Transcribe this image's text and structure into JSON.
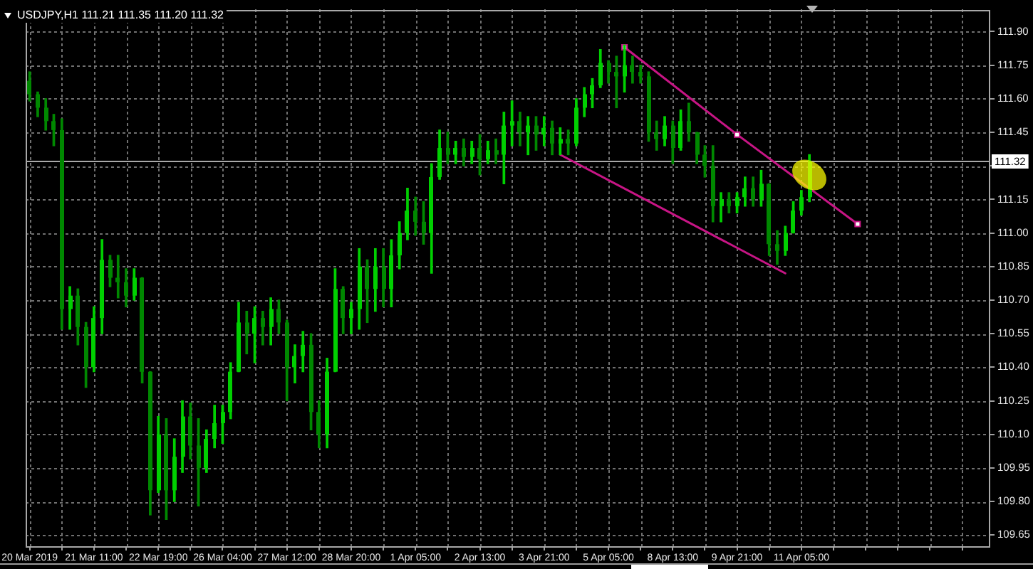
{
  "chart_data": {
    "type": "candlestick",
    "title": "USDJPY,H1 111.21 111.35 111.20 111.32",
    "categories": [
      "20 Mar 2019",
      null,
      null,
      null,
      null,
      null,
      null,
      null,
      "21 Mar 11:00",
      null,
      null,
      null,
      null,
      null,
      null,
      null,
      "22 Mar 19:00",
      null,
      null,
      null,
      null,
      null,
      null,
      null,
      "26 Mar 04:00",
      null,
      null,
      null,
      null,
      null,
      null,
      null,
      "27 Mar 12:00",
      null,
      null,
      null,
      null,
      null,
      null,
      null,
      "28 Mar 20:00",
      null,
      null,
      null,
      null,
      null,
      null,
      null,
      "1 Apr 05:00",
      null,
      null,
      null,
      null,
      null,
      null,
      null,
      "2 Apr 13:00",
      null,
      null,
      null,
      null,
      null,
      null,
      null,
      "3 Apr 21:00",
      null,
      null,
      null,
      null,
      null,
      null,
      null,
      "5 Apr 05:00",
      null,
      null,
      null,
      null,
      null,
      null,
      null,
      "8 Apr 13:00",
      null,
      null,
      null,
      null,
      null,
      null,
      null,
      "9 Apr 21:00",
      null,
      null,
      null,
      null,
      null,
      null,
      null,
      "11 Apr 05:00",
      null,
      null,
      null,
      null,
      null,
      null,
      null,
      null,
      null,
      null,
      null,
      null,
      null,
      null,
      null,
      null,
      null,
      null,
      null,
      null,
      null,
      null,
      null
    ],
    "ohlc": [
      [
        111.68,
        111.72,
        111.59,
        111.62
      ],
      [
        111.62,
        111.63,
        111.52,
        111.56
      ],
      [
        111.56,
        111.6,
        111.46,
        111.5
      ],
      [
        111.5,
        111.53,
        111.39,
        111.46
      ],
      [
        111.46,
        111.51,
        110.57,
        110.66
      ],
      [
        110.66,
        110.76,
        110.57,
        110.72
      ],
      [
        110.72,
        110.75,
        110.5,
        110.58
      ],
      [
        110.58,
        110.6,
        110.31,
        110.4
      ],
      [
        110.4,
        110.67,
        110.38,
        110.62
      ],
      [
        110.62,
        110.97,
        110.55,
        110.88
      ],
      [
        110.88,
        110.9,
        110.76,
        110.8
      ],
      [
        110.8,
        110.9,
        110.71,
        110.78
      ],
      [
        110.78,
        110.84,
        110.67,
        110.72
      ],
      [
        110.72,
        110.84,
        110.7,
        110.8
      ],
      [
        110.8,
        110.8,
        110.33,
        110.38
      ],
      [
        110.38,
        110.38,
        109.74,
        109.85
      ],
      [
        109.85,
        110.18,
        109.84,
        110.1
      ],
      [
        110.1,
        110.17,
        109.72,
        109.85
      ],
      [
        109.85,
        110.08,
        109.8,
        110.0
      ],
      [
        110.0,
        110.25,
        109.93,
        110.18
      ],
      [
        110.18,
        110.24,
        109.99,
        110.05
      ],
      [
        110.05,
        110.17,
        109.78,
        109.95
      ],
      [
        109.95,
        110.12,
        109.93,
        110.08
      ],
      [
        110.08,
        110.23,
        110.04,
        110.15
      ],
      [
        110.15,
        110.23,
        110.06,
        110.2
      ],
      [
        110.2,
        110.42,
        110.17,
        110.38
      ],
      [
        110.38,
        110.69,
        110.38,
        110.6
      ],
      [
        110.6,
        110.65,
        110.46,
        110.55
      ],
      [
        110.55,
        110.67,
        110.42,
        110.62
      ],
      [
        110.62,
        110.65,
        110.5,
        110.58
      ],
      [
        110.58,
        110.71,
        110.5,
        110.66
      ],
      [
        110.66,
        110.7,
        110.55,
        110.6
      ],
      [
        110.6,
        110.61,
        110.25,
        110.4
      ],
      [
        110.4,
        110.5,
        110.33,
        110.45
      ],
      [
        110.45,
        110.56,
        110.38,
        110.5
      ],
      [
        110.5,
        110.55,
        110.12,
        110.2
      ],
      [
        110.2,
        110.25,
        110.04,
        110.1
      ],
      [
        110.1,
        110.44,
        110.04,
        110.38
      ],
      [
        110.38,
        110.84,
        110.38,
        110.75
      ],
      [
        110.75,
        110.76,
        110.55,
        110.62
      ],
      [
        110.62,
        110.69,
        110.55,
        110.66
      ],
      [
        110.66,
        110.93,
        110.57,
        110.85
      ],
      [
        110.85,
        110.88,
        110.6,
        110.75
      ],
      [
        110.75,
        110.93,
        110.65,
        110.85
      ],
      [
        110.85,
        110.93,
        110.67,
        110.75
      ],
      [
        110.75,
        110.97,
        110.67,
        110.9
      ],
      [
        110.9,
        111.05,
        110.84,
        111.0
      ],
      [
        111.0,
        111.2,
        110.97,
        111.1
      ],
      [
        111.1,
        111.16,
        110.99,
        111.05
      ],
      [
        111.05,
        111.14,
        110.95,
        111.0
      ],
      [
        111.0,
        111.31,
        110.82,
        111.25
      ],
      [
        111.25,
        111.46,
        111.24,
        111.38
      ],
      [
        111.38,
        111.45,
        111.31,
        111.35
      ],
      [
        111.35,
        111.41,
        111.31,
        111.38
      ],
      [
        111.38,
        111.42,
        111.3,
        111.34
      ],
      [
        111.34,
        111.41,
        111.31,
        111.38
      ],
      [
        111.38,
        111.44,
        111.26,
        111.33
      ],
      [
        111.33,
        111.41,
        111.31,
        111.37
      ],
      [
        111.37,
        111.42,
        111.31,
        111.35
      ],
      [
        111.35,
        111.54,
        111.22,
        111.48
      ],
      [
        111.48,
        111.59,
        111.39,
        111.5
      ],
      [
        111.5,
        111.54,
        111.39,
        111.45
      ],
      [
        111.45,
        111.52,
        111.35,
        111.48
      ],
      [
        111.48,
        111.52,
        111.37,
        111.44
      ],
      [
        111.44,
        111.52,
        111.39,
        111.47
      ],
      [
        111.47,
        111.5,
        111.35,
        111.4
      ],
      [
        111.4,
        111.47,
        111.35,
        111.42
      ],
      [
        111.42,
        111.46,
        111.35,
        111.4
      ],
      [
        111.4,
        111.6,
        111.39,
        111.56
      ],
      [
        111.56,
        111.65,
        111.52,
        111.62
      ],
      [
        111.62,
        111.69,
        111.56,
        111.66
      ],
      [
        111.66,
        111.82,
        111.65,
        111.76
      ],
      [
        111.76,
        111.77,
        111.67,
        111.72
      ],
      [
        111.72,
        111.79,
        111.56,
        111.7
      ],
      [
        111.7,
        111.84,
        111.63,
        111.75
      ],
      [
        111.75,
        111.79,
        111.67,
        111.72
      ],
      [
        111.72,
        111.75,
        111.67,
        111.7
      ],
      [
        111.7,
        111.72,
        111.41,
        111.45
      ],
      [
        111.45,
        111.5,
        111.37,
        111.42
      ],
      [
        111.42,
        111.52,
        111.39,
        111.48
      ],
      [
        111.48,
        111.5,
        111.31,
        111.38
      ],
      [
        111.38,
        111.55,
        111.37,
        111.5
      ],
      [
        111.5,
        111.58,
        111.41,
        111.45
      ],
      [
        111.45,
        111.45,
        111.31,
        111.35
      ],
      [
        111.35,
        111.39,
        111.25,
        111.3
      ],
      [
        111.3,
        111.39,
        111.05,
        111.12
      ],
      [
        111.12,
        111.18,
        111.05,
        111.15
      ],
      [
        111.15,
        111.18,
        111.09,
        111.12
      ],
      [
        111.12,
        111.18,
        111.09,
        111.16
      ],
      [
        111.16,
        111.25,
        111.12,
        111.2
      ],
      [
        111.2,
        111.25,
        111.12,
        111.15
      ],
      [
        111.15,
        111.28,
        111.12,
        111.22
      ],
      [
        111.22,
        111.22,
        110.9,
        110.95
      ],
      [
        110.95,
        111.01,
        110.86,
        110.92
      ],
      [
        110.92,
        111.03,
        110.9,
        111.0
      ],
      [
        111.0,
        111.14,
        111.0,
        111.1
      ],
      [
        111.1,
        111.19,
        111.08,
        111.16
      ],
      [
        111.16,
        111.35,
        111.14,
        111.32
      ],
      null,
      null,
      null,
      null,
      null,
      null,
      null,
      null,
      null,
      null,
      null,
      null,
      null,
      null,
      null,
      null,
      null,
      null,
      null,
      null,
      null,
      null
    ],
    "colors": [
      "#008800",
      "#008800",
      "#008800",
      "#008800",
      "#008800",
      "#00d000",
      "#008800",
      "#008800",
      "#00d000",
      "#00d000",
      "#008800",
      "#008800",
      "#008800",
      "#00d000",
      "#008800",
      "#008800",
      "#00d000",
      "#008800",
      "#00d000",
      "#00d000",
      "#008800",
      "#008800",
      "#00d000",
      "#00d000",
      "#00d000",
      "#00d000",
      "#00d000",
      "#008800",
      "#00d000",
      "#008800",
      "#00d000",
      "#008800",
      "#008800",
      "#00d000",
      "#00d000",
      "#008800",
      "#008800",
      "#00d000",
      "#00d000",
      "#008800",
      "#00d000",
      "#00d000",
      "#008800",
      "#00d000",
      "#008800",
      "#00d000",
      "#00d000",
      "#00d000",
      "#008800",
      "#008800",
      "#00d000",
      "#00d000",
      "#008800",
      "#00d000",
      "#008800",
      "#00d000",
      "#008800",
      "#00d000",
      "#008800",
      "#00d000",
      "#00d000",
      "#008800",
      "#00d000",
      "#008800",
      "#00d000",
      "#008800",
      "#00d000",
      "#008800",
      "#00d000",
      "#00d000",
      "#00d000",
      "#00d000",
      "#008800",
      "#008800",
      "#00d000",
      "#008800",
      "#008800",
      "#008800",
      "#008800",
      "#00d000",
      "#008800",
      "#00d000",
      "#008800",
      "#008800",
      "#008800",
      "#008800",
      "#00d000",
      "#008800",
      "#00d000",
      "#00d000",
      "#008800",
      "#00d000",
      "#008800",
      "#008800",
      "#00d000",
      "#00d000",
      "#00d000",
      "#00d000",
      null,
      null,
      null,
      null,
      null,
      null,
      null,
      null,
      null,
      null,
      null,
      null,
      null,
      null,
      null,
      null,
      null,
      null,
      null,
      null,
      null,
      null
    ],
    "series": [
      {
        "type": "line",
        "color": "#c71585",
        "marker": "square",
        "values": [
          null,
          null,
          null,
          null,
          null,
          null,
          null,
          null,
          null,
          null,
          null,
          null,
          null,
          null,
          null,
          null,
          null,
          null,
          null,
          null,
          null,
          null,
          null,
          null,
          null,
          null,
          null,
          null,
          null,
          null,
          null,
          null,
          null,
          null,
          null,
          null,
          null,
          null,
          null,
          null,
          null,
          null,
          null,
          null,
          null,
          null,
          null,
          null,
          null,
          null,
          null,
          null,
          null,
          null,
          null,
          null,
          null,
          null,
          null,
          null,
          null,
          null,
          null,
          null,
          null,
          null,
          null,
          null,
          null,
          null,
          null,
          null,
          null,
          null,
          111.83,
          null,
          null,
          null,
          null,
          null,
          null,
          null,
          null,
          null,
          null,
          null,
          null,
          null,
          111.44,
          null,
          null,
          null,
          null,
          null,
          null,
          null,
          null,
          null,
          null,
          null,
          null,
          null,
          null,
          111.04,
          null,
          null,
          null,
          null,
          null,
          null,
          null,
          null,
          null,
          null,
          null,
          null,
          null,
          null,
          null,
          null
        ]
      },
      {
        "type": "line",
        "color": "#c71585",
        "values": [
          null,
          null,
          null,
          null,
          null,
          null,
          null,
          null,
          null,
          null,
          null,
          null,
          null,
          null,
          null,
          null,
          null,
          null,
          null,
          null,
          null,
          null,
          null,
          null,
          null,
          null,
          null,
          null,
          null,
          null,
          null,
          null,
          null,
          null,
          null,
          null,
          null,
          null,
          null,
          null,
          null,
          null,
          null,
          null,
          null,
          null,
          null,
          null,
          null,
          null,
          null,
          null,
          null,
          null,
          null,
          null,
          null,
          null,
          null,
          null,
          null,
          null,
          null,
          null,
          null,
          null,
          111.35,
          null,
          null,
          null,
          null,
          null,
          null,
          null,
          null,
          null,
          null,
          null,
          null,
          null,
          null,
          null,
          null,
          null,
          null,
          null,
          null,
          null,
          null,
          null,
          null,
          null,
          null,
          null,
          110.82,
          null,
          null,
          null,
          null,
          null,
          null,
          null,
          null,
          null,
          null,
          null,
          null,
          null,
          null,
          null,
          null,
          null,
          null,
          null,
          null,
          null,
          null,
          null,
          null,
          null
        ]
      }
    ],
    "ylim": [
      109.6,
      112.0
    ],
    "yticks": [
      109.65,
      {
        "value": 109.8,
        "label": "109.80"
      },
      109.95,
      {
        "value": 110.1,
        "label": "110.10"
      },
      110.25,
      {
        "value": 110.4,
        "label": "110.40"
      },
      110.55,
      {
        "value": 110.7,
        "label": "110.70"
      },
      110.85,
      {
        "value": 111.0,
        "label": "111.00"
      },
      111.15,
      {
        "value": 111.3,
        "label": null
      },
      111.45,
      {
        "value": 111.6,
        "label": "111.60"
      },
      111.75,
      {
        "value": 111.9,
        "label": "111.90"
      }
    ],
    "grid": true,
    "ref_lines": [
      {
        "axis": "y",
        "value": 111.32,
        "label": "111.32",
        "color": "#a8a8a8"
      }
    ]
  }
}
